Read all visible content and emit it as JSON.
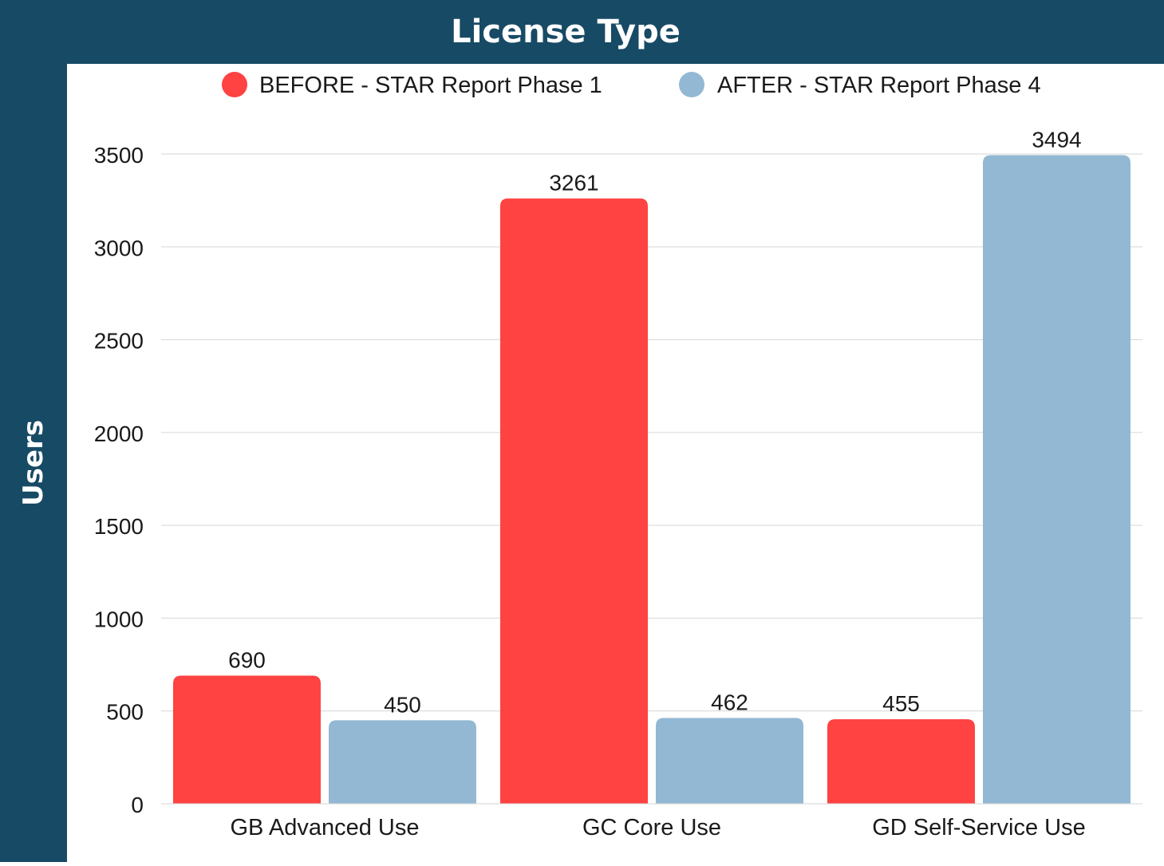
{
  "chart_data": {
    "type": "bar",
    "title": "License Type",
    "xlabel": "",
    "ylabel": "Users",
    "categories": [
      "GB Advanced Use",
      "GC Core Use",
      "GD Self-Service Use"
    ],
    "series": [
      {
        "name": "BEFORE - STAR Report Phase 1",
        "color": "#ff4242",
        "values": [
          690,
          3261,
          455
        ]
      },
      {
        "name": "AFTER - STAR Report Phase 4",
        "color": "#93b8d4",
        "values": [
          450,
          462,
          3494
        ]
      }
    ],
    "ylim": [
      0,
      3500
    ],
    "yticks": [
      0,
      500,
      1000,
      1500,
      2000,
      2500,
      3000,
      3500
    ],
    "grid": true,
    "legend": "top-center",
    "data_labels": true
  }
}
